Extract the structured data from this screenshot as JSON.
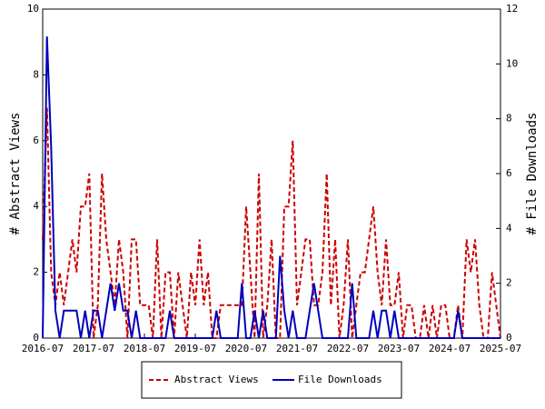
{
  "chart_data": {
    "type": "line",
    "x": [
      "2016-07",
      "2016-08",
      "2016-09",
      "2016-10",
      "2016-11",
      "2016-12",
      "2017-01",
      "2017-02",
      "2017-03",
      "2017-04",
      "2017-05",
      "2017-06",
      "2017-07",
      "2017-08",
      "2017-09",
      "2017-10",
      "2017-11",
      "2017-12",
      "2018-01",
      "2018-02",
      "2018-03",
      "2018-04",
      "2018-05",
      "2018-06",
      "2018-07",
      "2018-08",
      "2018-09",
      "2018-10",
      "2018-11",
      "2018-12",
      "2019-01",
      "2019-02",
      "2019-03",
      "2019-04",
      "2019-05",
      "2019-06",
      "2019-07",
      "2019-08",
      "2019-09",
      "2019-10",
      "2019-11",
      "2019-12",
      "2020-01",
      "2020-02",
      "2020-03",
      "2020-04",
      "2020-05",
      "2020-06",
      "2020-07",
      "2020-08",
      "2020-09",
      "2020-10",
      "2020-11",
      "2020-12",
      "2021-01",
      "2021-02",
      "2021-03",
      "2021-04",
      "2021-05",
      "2021-06",
      "2021-07",
      "2021-08",
      "2021-09",
      "2021-10",
      "2021-11",
      "2021-12",
      "2022-01",
      "2022-02",
      "2022-03",
      "2022-04",
      "2022-05",
      "2022-06",
      "2022-07",
      "2022-08",
      "2022-09",
      "2022-10",
      "2022-11",
      "2022-12",
      "2023-01",
      "2023-02",
      "2023-03",
      "2023-04",
      "2023-05",
      "2023-06",
      "2023-07",
      "2023-08",
      "2023-09",
      "2023-10",
      "2023-11",
      "2023-12",
      "2024-01",
      "2024-02",
      "2024-03",
      "2024-04",
      "2024-05",
      "2024-06",
      "2024-07",
      "2024-08",
      "2024-09",
      "2024-10",
      "2024-11",
      "2024-12",
      "2025-01",
      "2025-02",
      "2025-03",
      "2025-04",
      "2025-05",
      "2025-06",
      "2025-07"
    ],
    "series": [
      {
        "name": "Abstract Views",
        "color": "#cc0000",
        "dash": true,
        "values": [
          3,
          7,
          2,
          1,
          2,
          1,
          2,
          3,
          2,
          4,
          4,
          5,
          0,
          1,
          5,
          3,
          2,
          1,
          3,
          2,
          0,
          3,
          3,
          1,
          1,
          1,
          0,
          3,
          0,
          2,
          2,
          0,
          2,
          1,
          0,
          2,
          1,
          3,
          1,
          2,
          0,
          0,
          1,
          1,
          1,
          1,
          1,
          1,
          4,
          2,
          0,
          5,
          0,
          1,
          3,
          0,
          0,
          4,
          4,
          6,
          1,
          2,
          3,
          3,
          1,
          1,
          2,
          5,
          1,
          3,
          0,
          1,
          3,
          0,
          1,
          2,
          2,
          3,
          4,
          2,
          1,
          3,
          1,
          1,
          2,
          0,
          1,
          1,
          0,
          0,
          1,
          0,
          1,
          0,
          1,
          1,
          0,
          0,
          1,
          0,
          3,
          2,
          3,
          1,
          0,
          0,
          2,
          1,
          0
        ]
      },
      {
        "name": "File Downloads",
        "color": "#0000bb",
        "dash": false,
        "axis": "y2",
        "values": [
          0,
          11,
          7,
          1,
          0,
          1,
          1,
          1,
          1,
          0,
          1,
          0,
          1,
          1,
          0,
          1,
          2,
          1,
          2,
          1,
          1,
          0,
          1,
          0,
          0,
          0,
          0,
          0,
          0,
          0,
          1,
          0,
          0,
          0,
          0,
          0,
          0,
          0,
          0,
          0,
          0,
          1,
          0,
          0,
          0,
          0,
          0,
          2,
          0,
          0,
          1,
          0,
          1,
          0,
          0,
          0,
          3,
          1,
          0,
          1,
          0,
          0,
          0,
          1,
          2,
          1,
          0,
          0,
          0,
          0,
          0,
          0,
          0,
          2,
          0,
          0,
          0,
          0,
          1,
          0,
          1,
          1,
          0,
          1,
          0,
          0,
          0,
          0,
          0,
          0,
          0,
          0,
          0,
          0,
          0,
          0,
          0,
          0,
          1,
          0,
          0,
          0,
          0,
          0,
          0,
          0,
          0,
          0,
          0
        ]
      }
    ],
    "xticks": [
      "2016-07",
      "2017-07",
      "2018-07",
      "2019-07",
      "2020-07",
      "2021-07",
      "2022-07",
      "2023-07",
      "2024-07",
      "2025-07"
    ],
    "ylabel": "# Abstract Views",
    "y2label": "# File Downloads",
    "ylim": [
      0,
      10
    ],
    "yticks": [
      0,
      2,
      4,
      6,
      8,
      10
    ],
    "y2lim": [
      0,
      12
    ],
    "y2ticks": [
      0,
      2,
      4,
      6,
      8,
      10,
      12
    ],
    "legend": "bottom"
  }
}
